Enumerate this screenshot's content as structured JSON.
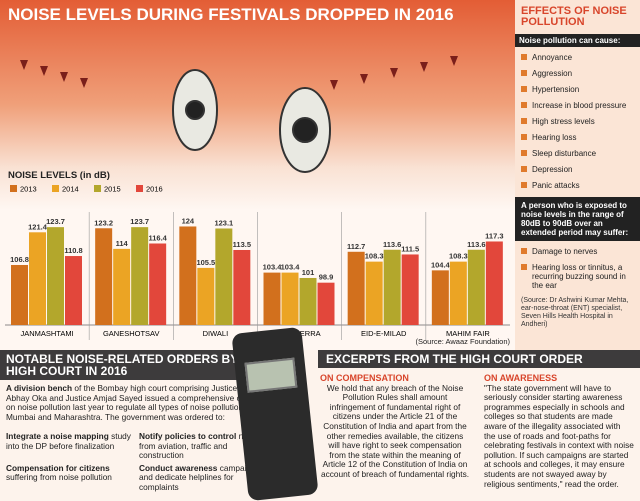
{
  "chart_data": {
    "type": "bar",
    "title": "NOISE LEVELS DURING FESTIVALS DROPPED IN 2016",
    "subtitle": "NOISE LEVELS (in dB)",
    "categories": [
      "JANMASHTAMI",
      "GANESHOTSAV",
      "DIWALI",
      "DUSHERRA",
      "EID-E-MILAD",
      "MAHIM FAIR"
    ],
    "series": [
      {
        "name": "2013",
        "color": "#d2701d",
        "values": [
          106.8,
          123.2,
          124,
          103.4,
          112.7,
          104.4
        ]
      },
      {
        "name": "2014",
        "color": "#eba424",
        "values": [
          121.4,
          114,
          105.5,
          103.4,
          108.3,
          108.3
        ]
      },
      {
        "name": "2015",
        "color": "#b3a72c",
        "values": [
          123.7,
          123.7,
          123.1,
          101,
          113.6,
          113.6
        ]
      },
      {
        "name": "2016",
        "color": "#e2473b",
        "values": [
          110.8,
          116.4,
          113.5,
          98.9,
          111.5,
          117.3
        ]
      }
    ],
    "ylim": [
      80,
      126
    ],
    "source": "(Source: Awaaz Foundation)"
  },
  "sidebar": {
    "title": "EFFECTS OF NOISE POLLUTION",
    "subtitle": "Noise pollution can cause:",
    "items": [
      "Annoyance",
      "Aggression",
      "Hypertension",
      "Increase in blood pressure",
      "High stress levels",
      "Hearing loss",
      "Sleep disturbance",
      "Depression",
      "Panic attacks"
    ],
    "box": "A person who is exposed to noise levels in the range of 80dB to 90dB over an extended period may suffer:",
    "effects": [
      "Damage to nerves",
      "Hearing loss or tinnitus, a recurring buzzing sound in the ear"
    ],
    "source": "(Source: Dr Ashwini Kumar Mehta, ear-nose-throat (ENT) specialist, Seven Hills Health Hospital in Andheri)"
  },
  "orders": {
    "title": "NOTABLE NOISE-RELATED ORDERS BY THE HIGH COURT IN 2016",
    "lead": "A division bench",
    "text": " of the Bombay high court comprising Justice Abhay Oka and Justice Amjad Sayed issued a comprehensive order on noise pollution last year to regulate all types of noise pollution in Mumbai and Maharashtra. The government was ordered to:",
    "items": [
      {
        "bold": "Integrate a noise mapping",
        "text": " study into the DP before finalization"
      },
      {
        "bold": "Notify policies to control",
        "text": " noise from aviation, traffic and construction"
      },
      {
        "bold": "Compensation for citizens",
        "text": " suffering from noise pollution"
      },
      {
        "bold": "Conduct awareness",
        "text": " campaigns and dedicate helplines for complaints"
      }
    ]
  },
  "excerpts": {
    "title": "EXCERPTS FROM THE HIGH COURT ORDER",
    "compensation": {
      "heading": "ON COMPENSATION",
      "text": "We hold that any breach of the Noise Pollution Rules shall amount infringement of fundamental right of citizens under the Article 21 of the Constitution of India and apart from the other remedies available, the citizens will have right to seek compensation from the state within the meaning of Article 12 of the Constitution of India on account of breach of fundamental rights."
    },
    "awareness": {
      "heading": "ON AWARENESS",
      "text": "\"The state government will have to seriously consider starting awareness programmes especially in schools and colleges so that students are made aware of the illegality associated with the use of roads and foot-paths for celebrating festivals in context with noise pollution. If such campaigns are started at schools and colleges, it may ensure students are not swayed away by religious sentiments,\" read the order."
    }
  }
}
